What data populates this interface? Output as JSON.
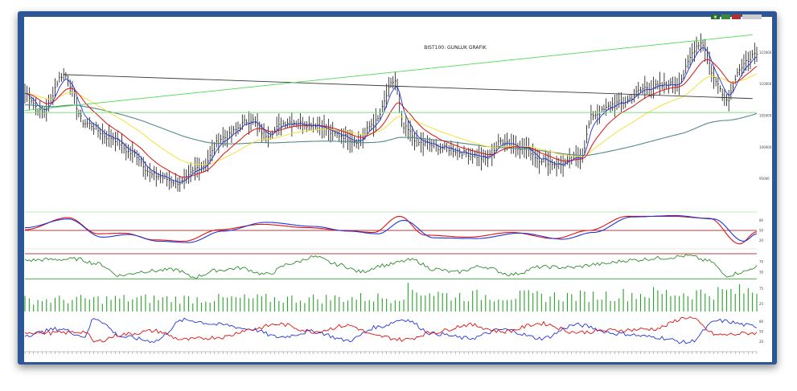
{
  "toolbar": {
    "buttons": [
      {
        "icon": "grid-icon",
        "color": "#2a6a2a"
      },
      {
        "label": "",
        "color": "#3a8a3a"
      },
      {
        "label": "",
        "color": "#b03030"
      },
      {
        "label": "",
        "color": "#cccccc"
      }
    ]
  },
  "chart_data": {
    "type": "line",
    "title": "BIST100: GUNLUK GRAFIK",
    "main": {
      "ylim": [
        90000,
        120000
      ],
      "yticks": [
        {
          "v": 115000,
          "t": "115000"
        },
        {
          "v": 110000,
          "t": "110000"
        },
        {
          "v": 105000,
          "t": "105000"
        },
        {
          "v": 100000,
          "t": "100000"
        },
        {
          "v": 95000,
          "t": "95000"
        }
      ],
      "price_anchors": [
        [
          0,
          108500
        ],
        [
          8,
          105500
        ],
        [
          18,
          111500
        ],
        [
          28,
          103800
        ],
        [
          40,
          101500
        ],
        [
          50,
          99000
        ],
        [
          60,
          95500
        ],
        [
          72,
          94400
        ],
        [
          82,
          97000
        ],
        [
          92,
          101500
        ],
        [
          105,
          104300
        ],
        [
          112,
          102000
        ],
        [
          122,
          104000
        ],
        [
          135,
          103600
        ],
        [
          145,
          102000
        ],
        [
          155,
          101000
        ],
        [
          162,
          103800
        ],
        [
          172,
          110500
        ],
        [
          176,
          103000
        ],
        [
          184,
          100600
        ],
        [
          196,
          99800
        ],
        [
          206,
          99000
        ],
        [
          214,
          98200
        ],
        [
          222,
          101000
        ],
        [
          232,
          99900
        ],
        [
          240,
          98000
        ],
        [
          248,
          97200
        ],
        [
          258,
          98500
        ],
        [
          264,
          105200
        ],
        [
          276,
          107000
        ],
        [
          290,
          109500
        ],
        [
          302,
          110000
        ],
        [
          314,
          116500
        ],
        [
          322,
          110000
        ],
        [
          326,
          107500
        ],
        [
          332,
          112300
        ],
        [
          338,
          114400
        ]
      ],
      "trend_lines": [
        {
          "from": [
            18,
            111500
          ],
          "to": [
            338,
            107700
          ],
          "color": "#3a3a3a"
        },
        {
          "from": [
            0,
            105800
          ],
          "to": [
            338,
            117800
          ],
          "color": "#4fd84f"
        }
      ],
      "hlines": [
        {
          "v": 105500,
          "color": "#7cdf7c"
        }
      ],
      "ma_fast_color": "#2233dd",
      "ma_mid_color": "#dd1111",
      "ma_slow_color": "#f2e23a",
      "ma_long_color": "#55888a"
    },
    "osc1": {
      "ylim": [
        0,
        100
      ],
      "yticks": [
        {
          "v": 80,
          "t": "80"
        },
        {
          "v": 50,
          "t": "50"
        },
        {
          "v": 20,
          "t": "20"
        }
      ],
      "hlines": [
        {
          "v": 50,
          "color": "#8b0000"
        }
      ],
      "series": [
        {
          "name": "",
          "color": "#dd1111",
          "anchors": [
            [
              0,
              52
            ],
            [
              20,
              88
            ],
            [
              34,
              40
            ],
            [
              46,
              42
            ],
            [
              60,
              22
            ],
            [
              74,
              18
            ],
            [
              90,
              52
            ],
            [
              110,
              68
            ],
            [
              132,
              58
            ],
            [
              148,
              50
            ],
            [
              162,
              44
            ],
            [
              174,
              92
            ],
            [
              186,
              36
            ],
            [
              206,
              30
            ],
            [
              226,
              44
            ],
            [
              246,
              26
            ],
            [
              262,
              50
            ],
            [
              280,
              92
            ],
            [
              300,
              92
            ],
            [
              318,
              86
            ],
            [
              332,
              10
            ],
            [
              340,
              46
            ]
          ]
        },
        {
          "name": "",
          "color": "#2233dd",
          "anchors": [
            [
              0,
              58
            ],
            [
              20,
              84
            ],
            [
              36,
              30
            ],
            [
              48,
              38
            ],
            [
              62,
              18
            ],
            [
              76,
              14
            ],
            [
              92,
              48
            ],
            [
              112,
              74
            ],
            [
              134,
              62
            ],
            [
              150,
              48
            ],
            [
              164,
              40
            ],
            [
              176,
              80
            ],
            [
              190,
              28
            ],
            [
              210,
              26
            ],
            [
              230,
              42
            ],
            [
              250,
              24
            ],
            [
              264,
              44
            ],
            [
              282,
              90
            ],
            [
              302,
              94
            ],
            [
              320,
              84
            ],
            [
              334,
              18
            ],
            [
              340,
              40
            ]
          ]
        }
      ]
    },
    "osc2": {
      "ylim": [
        0,
        100
      ],
      "yticks": [
        {
          "v": 70,
          "t": "70"
        },
        {
          "v": 30,
          "t": "30"
        }
      ],
      "hlines": [
        {
          "v": 100,
          "color": "#b84040"
        },
        {
          "v": 5,
          "color": "#3a9a3a"
        }
      ],
      "series": [
        {
          "name": "",
          "color": "#2e8b2e",
          "anchors": [
            [
              0,
              75
            ],
            [
              12,
              78
            ],
            [
              24,
              80
            ],
            [
              34,
              62
            ],
            [
              44,
              18
            ],
            [
              56,
              34
            ],
            [
              70,
              40
            ],
            [
              78,
              12
            ],
            [
              90,
              38
            ],
            [
              100,
              46
            ],
            [
              112,
              22
            ],
            [
              124,
              64
            ],
            [
              134,
              88
            ],
            [
              146,
              58
            ],
            [
              156,
              32
            ],
            [
              166,
              56
            ],
            [
              180,
              76
            ],
            [
              190,
              42
            ],
            [
              200,
              30
            ],
            [
              212,
              52
            ],
            [
              226,
              22
            ],
            [
              240,
              50
            ],
            [
              254,
              48
            ],
            [
              266,
              60
            ],
            [
              282,
              76
            ],
            [
              296,
              84
            ],
            [
              308,
              92
            ],
            [
              318,
              72
            ],
            [
              326,
              18
            ],
            [
              334,
              32
            ],
            [
              340,
              52
            ]
          ]
        }
      ]
    },
    "volume": {
      "ylim": [
        0,
        100
      ],
      "yticks": [
        {
          "v": 75,
          "t": "75"
        },
        {
          "v": 25,
          "t": "25"
        }
      ],
      "color": "#27a327",
      "avg_anchors": [
        [
          0,
          38
        ],
        [
          60,
          42
        ],
        [
          120,
          42
        ],
        [
          170,
          46
        ],
        [
          180,
          70
        ],
        [
          200,
          52
        ],
        [
          250,
          50
        ],
        [
          300,
          60
        ],
        [
          340,
          66
        ]
      ]
    },
    "dmi": {
      "ylim": [
        0,
        100
      ],
      "yticks": [
        {
          "v": 80,
          "t": "80"
        },
        {
          "v": 50,
          "t": "50"
        },
        {
          "v": 20,
          "t": "20"
        }
      ],
      "series": [
        {
          "name": "",
          "color": "#2233dd",
          "anchors": [
            [
              0,
              40
            ],
            [
              16,
              58
            ],
            [
              28,
              36
            ],
            [
              32,
              90
            ],
            [
              46,
              34
            ],
            [
              60,
              22
            ],
            [
              74,
              84
            ],
            [
              92,
              70
            ],
            [
              104,
              58
            ],
            [
              118,
              34
            ],
            [
              134,
              50
            ],
            [
              150,
              24
            ],
            [
              164,
              64
            ],
            [
              176,
              86
            ],
            [
              190,
              44
            ],
            [
              206,
              30
            ],
            [
              222,
              56
            ],
            [
              240,
              30
            ],
            [
              256,
              70
            ],
            [
              276,
              44
            ],
            [
              292,
              34
            ],
            [
              308,
              18
            ],
            [
              322,
              82
            ],
            [
              340,
              66
            ]
          ]
        },
        {
          "name": "",
          "color": "#dd1111",
          "anchors": [
            [
              0,
              48
            ],
            [
              16,
              46
            ],
            [
              28,
              50
            ],
            [
              32,
              20
            ],
            [
              46,
              42
            ],
            [
              60,
              52
            ],
            [
              74,
              26
            ],
            [
              92,
              34
            ],
            [
              104,
              56
            ],
            [
              118,
              72
            ],
            [
              134,
              50
            ],
            [
              150,
              68
            ],
            [
              164,
              36
            ],
            [
              176,
              26
            ],
            [
              190,
              48
            ],
            [
              206,
              70
            ],
            [
              222,
              50
            ],
            [
              240,
              74
            ],
            [
              256,
              48
            ],
            [
              276,
              54
            ],
            [
              292,
              58
            ],
            [
              308,
              92
            ],
            [
              322,
              40
            ],
            [
              340,
              46
            ]
          ]
        }
      ]
    }
  }
}
